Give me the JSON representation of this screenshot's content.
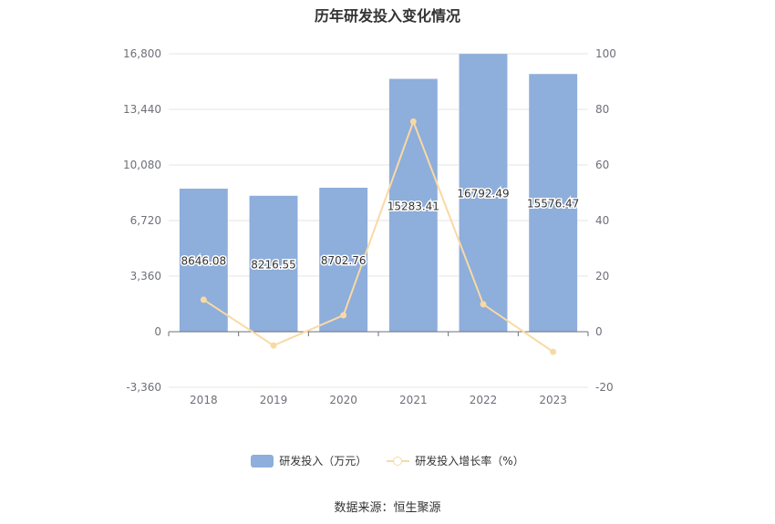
{
  "chart_data": {
    "type": "bar",
    "title": "历年研发投入变化情况",
    "categories": [
      "2018",
      "2019",
      "2020",
      "2021",
      "2022",
      "2023"
    ],
    "series": [
      {
        "name": "研发投入（万元）",
        "type": "bar",
        "axis": "left",
        "values": [
          8646.08,
          8216.55,
          8702.76,
          15283.41,
          16792.49,
          15576.47
        ],
        "labels": [
          "8646.08",
          "8216.55",
          "8702.76",
          "15283.41",
          "16792.49",
          "15576.47"
        ],
        "color": "#8eaedb"
      },
      {
        "name": "研发投入增长率（%）",
        "type": "line",
        "axis": "right",
        "values": [
          11.5,
          -4.97,
          5.92,
          75.62,
          9.87,
          -7.24
        ],
        "color": "#f9d9a3"
      }
    ],
    "y_left": {
      "min": -3360,
      "max": 16800,
      "ticks": [
        -3360,
        0,
        3360,
        6720,
        10080,
        13440,
        16800
      ],
      "tick_labels": [
        "-3,360",
        "0",
        "3,360",
        "6,720",
        "10,080",
        "13,440",
        "16,800"
      ]
    },
    "y_right": {
      "min": -20,
      "max": 100,
      "ticks": [
        -20,
        0,
        20,
        40,
        60,
        80,
        100
      ],
      "tick_labels": [
        "-20",
        "0",
        "20",
        "40",
        "60",
        "80",
        "100"
      ]
    },
    "grid": true,
    "legend_position": "bottom",
    "source": "数据来源：恒生聚源"
  }
}
